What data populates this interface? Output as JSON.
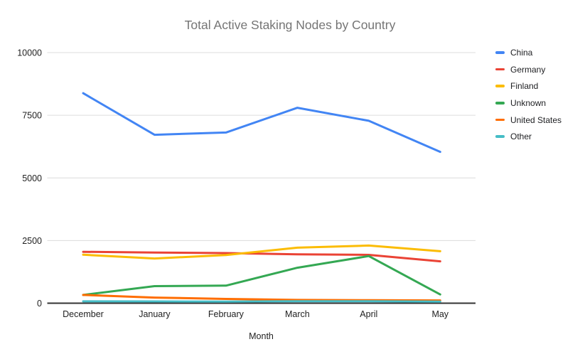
{
  "chart_data": {
    "type": "line",
    "title": "Total Active Staking Nodes by Country",
    "xlabel": "Month",
    "ylabel": "",
    "categories": [
      "December",
      "January",
      "February",
      "March",
      "April",
      "May"
    ],
    "series": [
      {
        "name": "China",
        "color": "#4285F4",
        "values": [
          8380,
          6720,
          6810,
          7800,
          7280,
          6040
        ]
      },
      {
        "name": "Germany",
        "color": "#EA4335",
        "values": [
          2050,
          2020,
          2000,
          1950,
          1930,
          1670
        ]
      },
      {
        "name": "Finland",
        "color": "#FBBC04",
        "values": [
          1935,
          1785,
          1920,
          2215,
          2300,
          2075
        ]
      },
      {
        "name": "Unknown",
        "color": "#34A853",
        "values": [
          330,
          680,
          700,
          1415,
          1880,
          350
        ]
      },
      {
        "name": "United States",
        "color": "#FF6D01",
        "values": [
          330,
          225,
          170,
          130,
          120,
          110
        ]
      },
      {
        "name": "Other",
        "color": "#46BDC6",
        "values": [
          75,
          70,
          65,
          80,
          80,
          65
        ]
      }
    ],
    "ylim": [
      0,
      10000
    ],
    "yticks": [
      0,
      2500,
      5000,
      7500,
      10000
    ],
    "ytick_labels": [
      "0",
      "2500",
      "5000",
      "7500",
      "10000"
    ],
    "grid": true,
    "legend_position": "right",
    "colors": {
      "background": "#ffffff",
      "title_text": "#757575",
      "axis_text": "#1f1f1f",
      "gridline": "#dcdcdc",
      "baseline": "#333333"
    }
  }
}
